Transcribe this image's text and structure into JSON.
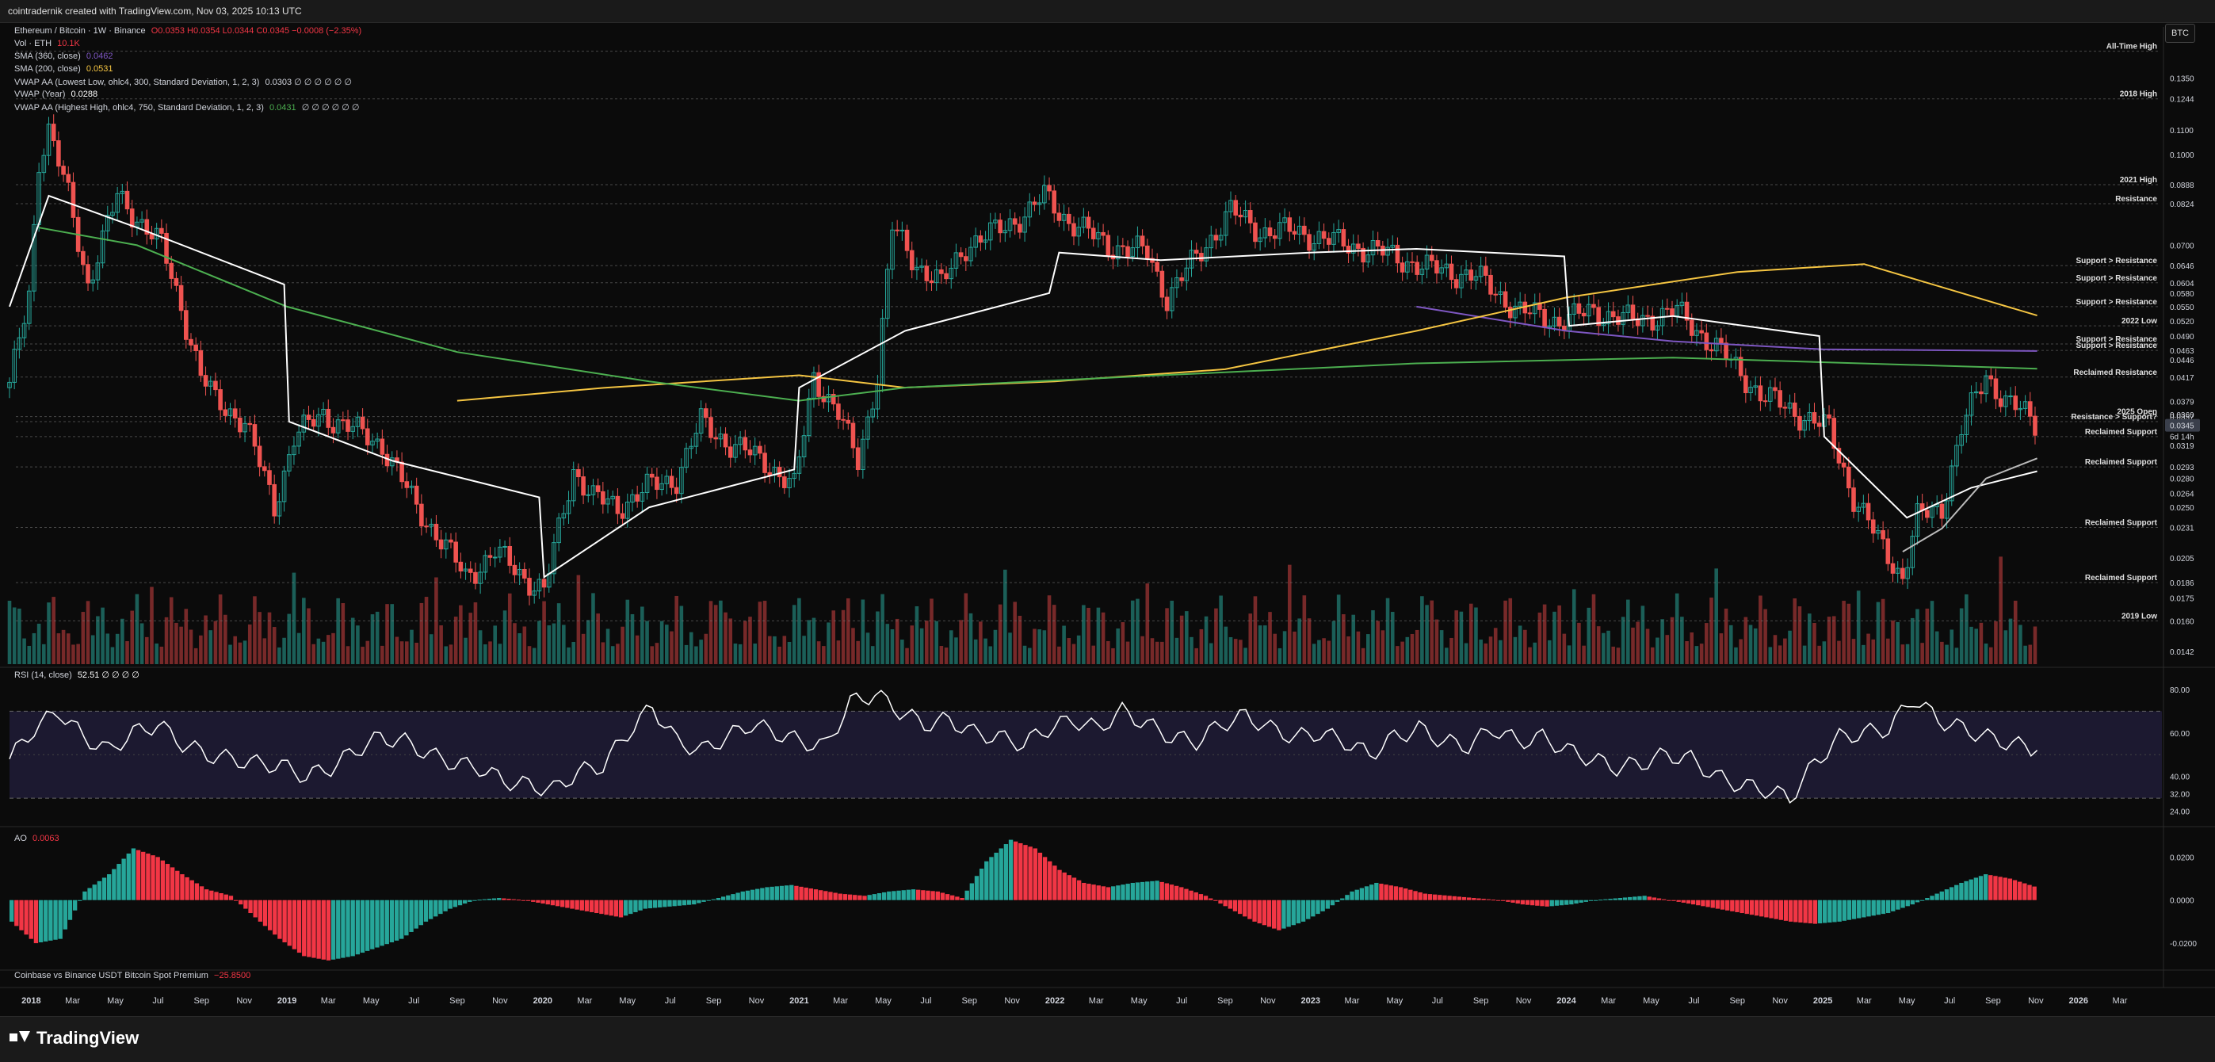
{
  "header": {
    "credit": "cointradernik created with TradingView.com, Nov 03, 2025 10:13 UTC"
  },
  "footer": {
    "brand": "TradingView"
  },
  "symbol_button": "BTC",
  "legend": {
    "title": "Ethereum / Bitcoin · 1W · Binance",
    "ohlc": "O0.0353  H0.0354  L0.0344  C0.0345  −0.0008 (−2.35%)",
    "volume": {
      "label": "Vol · ETH",
      "value": "10.1K"
    },
    "sma360": {
      "label": "SMA (360, close)",
      "value": "0.0462",
      "color": "#7e57c2"
    },
    "sma200": {
      "label": "SMA (200, close)",
      "value": "0.0531",
      "color": "#f5c542"
    },
    "vwap_low": {
      "label": "VWAP AA (Lowest Low, ohlc4, 300, Standard Deviation, 1, 2, 3)",
      "value": "0.0303  ∅ ∅ ∅ ∅ ∅ ∅"
    },
    "vwap_year": {
      "label": "VWAP (Year)",
      "value": "0.0288"
    },
    "vwap_high": {
      "label": "VWAP AA (Highest High, ohlc4, 750, Standard Deviation, 1, 2, 3)",
      "value": "0.0431",
      "suffix": "∅ ∅ ∅ ∅ ∅ ∅",
      "color": "#4caf50"
    }
  },
  "rsi_label": {
    "label": "RSI (14, close)",
    "value": "52.51  ∅ ∅ ∅ ∅"
  },
  "ao_label": {
    "label": "AO",
    "value": "0.0063"
  },
  "premium_label": {
    "label": "Coinbase vs Binance USDT Bitcoin Spot Premium",
    "value": "−25.8500"
  },
  "chart_data": [
    {
      "type": "candlestick",
      "title": "Ethereum / Bitcoin · 1W · Binance",
      "y_scale": "log",
      "ylim": [
        0.0135,
        0.165
      ],
      "x_start": "2017-12-01",
      "x_end": "2026-04-30",
      "price_ticks": [
        "0.1350",
        "0.1244",
        "0.1100",
        "0.1000",
        "0.0888",
        "0.0824",
        "0.0700",
        "0.0646",
        "0.0604",
        "0.0580",
        "0.0550",
        "0.0520",
        "0.0490",
        "0.0463",
        "0.0446",
        "0.0417",
        "0.0379",
        "0.0360",
        "0.0357",
        "0.0345",
        "0.0319",
        "0.0293",
        "0.0280",
        "0.0264",
        "0.0250",
        "0.0231",
        "0.0205",
        "0.0186",
        "0.0175",
        "0.0160",
        "0.0142"
      ],
      "x_labels": [
        "2018",
        "Mar",
        "May",
        "Jul",
        "Sep",
        "Nov",
        "2019",
        "Mar",
        "May",
        "Jul",
        "Sep",
        "Nov",
        "2020",
        "Mar",
        "May",
        "Jul",
        "Sep",
        "Nov",
        "2021",
        "Mar",
        "May",
        "Jul",
        "Sep",
        "Nov",
        "2022",
        "Mar",
        "May",
        "Jul",
        "Sep",
        "Nov",
        "2023",
        "Mar",
        "May",
        "Jul",
        "Sep",
        "Nov",
        "2024",
        "Mar",
        "May",
        "Jul",
        "Sep",
        "Nov",
        "2025",
        "Mar",
        "May",
        "Jul",
        "Sep",
        "Nov",
        "2026",
        "Mar"
      ],
      "levels": [
        {
          "label": "All-Time High",
          "price": 0.15
        },
        {
          "label": "2018 High",
          "price": 0.1244
        },
        {
          "label": "2021 High",
          "price": 0.0888
        },
        {
          "label": "Resistance",
          "price": 0.0824
        },
        {
          "label": "Support > Resistance",
          "price": 0.0646
        },
        {
          "label": "Support > Resistance",
          "price": 0.0604
        },
        {
          "label": "Support > Resistance",
          "price": 0.055
        },
        {
          "label": "2022 Low",
          "price": 0.051
        },
        {
          "label": "Support > Resistance",
          "price": 0.0475
        },
        {
          "label": "Support > Resistance",
          "price": 0.0463
        },
        {
          "label": "Reclaimed Resistance",
          "price": 0.0417
        },
        {
          "label": "2025 Open",
          "price": 0.0357
        },
        {
          "label": "Resistance > Support?",
          "price": 0.035
        },
        {
          "label": "Reclaimed Support",
          "price": 0.033
        },
        {
          "label": "Reclaimed Support",
          "price": 0.0293
        },
        {
          "label": "Reclaimed Support",
          "price": 0.0231
        },
        {
          "label": "Reclaimed Support",
          "price": 0.0186
        },
        {
          "label": "2019 Low",
          "price": 0.016
        }
      ],
      "last_price": {
        "value": "0.0345",
        "countdown": "6d 14h"
      },
      "close_path": [
        [
          "2017-12-01",
          0.04
        ],
        [
          "2017-12-29",
          0.058
        ],
        [
          "2018-01-12",
          0.098
        ],
        [
          "2018-01-26",
          0.11
        ],
        [
          "2018-02-23",
          0.085
        ],
        [
          "2018-03-23",
          0.06
        ],
        [
          "2018-05-04",
          0.085
        ],
        [
          "2018-06-01",
          0.078
        ],
        [
          "2018-07-06",
          0.07
        ],
        [
          "2018-08-03",
          0.055
        ],
        [
          "2018-08-31",
          0.042
        ],
        [
          "2018-09-21",
          0.038
        ],
        [
          "2018-11-02",
          0.035
        ],
        [
          "2018-12-14",
          0.025
        ],
        [
          "2019-01-11",
          0.033
        ],
        [
          "2019-02-22",
          0.036
        ],
        [
          "2019-04-05",
          0.034
        ],
        [
          "2019-05-17",
          0.032
        ],
        [
          "2019-07-05",
          0.025
        ],
        [
          "2019-08-09",
          0.022
        ],
        [
          "2019-09-13",
          0.019
        ],
        [
          "2019-10-25",
          0.021
        ],
        [
          "2019-12-06",
          0.019
        ],
        [
          "2020-01-03",
          0.018
        ],
        [
          "2020-02-14",
          0.029
        ],
        [
          "2020-03-13",
          0.026
        ],
        [
          "2020-04-17",
          0.025
        ],
        [
          "2020-05-29",
          0.027
        ],
        [
          "2020-07-10",
          0.028
        ],
        [
          "2020-08-14",
          0.035
        ],
        [
          "2020-09-25",
          0.032
        ],
        [
          "2020-11-13",
          0.03
        ],
        [
          "2020-12-25",
          0.027
        ],
        [
          "2021-01-22",
          0.042
        ],
        [
          "2021-02-26",
          0.036
        ],
        [
          "2021-03-26",
          0.03
        ],
        [
          "2021-04-23",
          0.042
        ],
        [
          "2021-05-14",
          0.075
        ],
        [
          "2021-06-18",
          0.065
        ],
        [
          "2021-07-23",
          0.06
        ],
        [
          "2021-08-27",
          0.07
        ],
        [
          "2021-10-01",
          0.073
        ],
        [
          "2021-11-26",
          0.08
        ],
        [
          "2021-12-17",
          0.085
        ],
        [
          "2022-01-21",
          0.077
        ],
        [
          "2022-03-18",
          0.07
        ],
        [
          "2022-05-13",
          0.068
        ],
        [
          "2022-06-10",
          0.057
        ],
        [
          "2022-07-15",
          0.065
        ],
        [
          "2022-09-09",
          0.08
        ],
        [
          "2022-10-21",
          0.074
        ],
        [
          "2022-12-09",
          0.074
        ],
        [
          "2023-02-03",
          0.071
        ],
        [
          "2023-04-14",
          0.068
        ],
        [
          "2023-06-16",
          0.064
        ],
        [
          "2023-08-25",
          0.062
        ],
        [
          "2023-10-27",
          0.054
        ],
        [
          "2023-12-22",
          0.052
        ],
        [
          "2024-02-09",
          0.054
        ],
        [
          "2024-04-05",
          0.052
        ],
        [
          "2024-06-07",
          0.054
        ],
        [
          "2024-08-09",
          0.046
        ],
        [
          "2024-10-04",
          0.039
        ],
        [
          "2024-11-29",
          0.036
        ],
        [
          "2025-01-10",
          0.034
        ],
        [
          "2025-02-14",
          0.026
        ],
        [
          "2025-03-21",
          0.022
        ],
        [
          "2025-04-25",
          0.019
        ],
        [
          "2025-05-16",
          0.024
        ],
        [
          "2025-06-20",
          0.025
        ],
        [
          "2025-07-18",
          0.034
        ],
        [
          "2025-08-22",
          0.042
        ],
        [
          "2025-09-19",
          0.038
        ],
        [
          "2025-10-17",
          0.036
        ],
        [
          "2025-11-03",
          0.0345
        ]
      ],
      "series": [
        {
          "name": "SMA (360, close)",
          "color": "#7e57c2",
          "value": "0.0462",
          "points": [
            [
              "2023-06-01",
              0.055
            ],
            [
              "2024-01-01",
              0.05
            ],
            [
              "2024-06-01",
              0.048
            ],
            [
              "2025-01-01",
              0.0465
            ],
            [
              "2025-11-03",
              0.0462
            ]
          ]
        },
        {
          "name": "SMA (200, close)",
          "color": "#f5c542",
          "value": "0.0531",
          "points": [
            [
              "2019-09-01",
              0.038
            ],
            [
              "2020-04-01",
              0.04
            ],
            [
              "2021-01-01",
              0.042
            ],
            [
              "2021-06-01",
              0.04
            ],
            [
              "2022-01-01",
              0.041
            ],
            [
              "2022-09-01",
              0.043
            ],
            [
              "2023-06-01",
              0.05
            ],
            [
              "2024-01-01",
              0.057
            ],
            [
              "2024-09-01",
              0.063
            ],
            [
              "2025-03-01",
              0.065
            ],
            [
              "2025-11-03",
              0.0531
            ]
          ]
        },
        {
          "name": "VWAP AA (Highest High)",
          "color": "#4caf50",
          "value": "0.0431",
          "points": [
            [
              "2018-01-12",
              0.075
            ],
            [
              "2018-06-01",
              0.07
            ],
            [
              "2019-01-01",
              0.055
            ],
            [
              "2019-09-01",
              0.046
            ],
            [
              "2020-06-01",
              0.041
            ],
            [
              "2021-01-01",
              0.038
            ],
            [
              "2021-06-01",
              0.04
            ],
            [
              "2022-06-01",
              0.042
            ],
            [
              "2023-06-01",
              0.044
            ],
            [
              "2024-06-01",
              0.045
            ],
            [
              "2025-11-03",
              0.0431
            ]
          ]
        },
        {
          "name": "VWAP (Year)",
          "color": "#ffffff",
          "value": "0.0288",
          "points": [
            [
              "2017-12-01",
              0.055
            ],
            [
              "2018-01-26",
              0.085
            ],
            [
              "2018-06-01",
              0.075
            ],
            [
              "2018-12-28",
              0.06
            ],
            [
              "2019-01-04",
              0.035
            ],
            [
              "2019-06-01",
              0.03
            ],
            [
              "2019-12-27",
              0.026
            ],
            [
              "2020-01-03",
              0.019
            ],
            [
              "2020-06-01",
              0.025
            ],
            [
              "2020-12-25",
              0.029
            ],
            [
              "2021-01-01",
              0.04
            ],
            [
              "2021-06-01",
              0.05
            ],
            [
              "2021-12-24",
              0.058
            ],
            [
              "2022-01-07",
              0.068
            ],
            [
              "2022-06-01",
              0.066
            ],
            [
              "2022-12-30",
              0.068
            ],
            [
              "2023-06-01",
              0.069
            ],
            [
              "2023-12-29",
              0.067
            ],
            [
              "2024-01-05",
              0.051
            ],
            [
              "2024-06-01",
              0.053
            ],
            [
              "2024-12-27",
              0.049
            ],
            [
              "2025-01-03",
              0.033
            ],
            [
              "2025-05-01",
              0.024
            ],
            [
              "2025-08-01",
              0.027
            ],
            [
              "2025-11-03",
              0.0288
            ]
          ]
        },
        {
          "name": "VWAP AA (Lowest Low)",
          "color": "#bbbbbb",
          "value": "0.0303",
          "points": [
            [
              "2025-04-25",
              0.021
            ],
            [
              "2025-06-20",
              0.023
            ],
            [
              "2025-08-22",
              0.028
            ],
            [
              "2025-11-03",
              0.0303
            ]
          ]
        }
      ]
    },
    {
      "type": "line",
      "title": "RSI (14, close)",
      "ylim": [
        18,
        88
      ],
      "y_ticks": [
        "80.00",
        "60.00",
        "40.00",
        "32.00",
        "24.00"
      ],
      "bands": [
        70,
        30
      ],
      "values": [
        48,
        62,
        70,
        58,
        52,
        60,
        64,
        55,
        50,
        48,
        46,
        45,
        40,
        44,
        52,
        58,
        56,
        50,
        46,
        44,
        38,
        36,
        34,
        42,
        45,
        60,
        72,
        56,
        52,
        58,
        64,
        60,
        56,
        54,
        74,
        78,
        70,
        64,
        66,
        60,
        58,
        55,
        62,
        66,
        62,
        70,
        64,
        58,
        56,
        64,
        68,
        62,
        58,
        60,
        56,
        50,
        58,
        62,
        56,
        54,
        62,
        56,
        58,
        52,
        48,
        44,
        46,
        50,
        48,
        40,
        36,
        34,
        30,
        46,
        58,
        60,
        62,
        76,
        66,
        62,
        58,
        55,
        52
      ],
      "x_start": "2017-12-01",
      "x_end": "2025-11-03"
    },
    {
      "type": "bar",
      "title": "AO",
      "ylim": [
        -0.031,
        0.033
      ],
      "y_ticks": [
        "0.0200",
        "0.0000",
        "-0.0200"
      ],
      "values": [
        -0.01,
        -0.02,
        -0.018,
        0.004,
        0.012,
        0.024,
        0.02,
        0.012,
        0.005,
        0.002,
        -0.008,
        -0.018,
        -0.026,
        -0.028,
        -0.026,
        -0.022,
        -0.018,
        -0.01,
        -0.004,
        0.0,
        0.001,
        0.0,
        -0.002,
        -0.004,
        -0.006,
        -0.008,
        -0.004,
        -0.003,
        -0.002,
        0.001,
        0.004,
        0.006,
        0.007,
        0.005,
        0.003,
        0.002,
        0.004,
        0.005,
        0.004,
        0.001,
        0.018,
        0.028,
        0.024,
        0.014,
        0.008,
        0.006,
        0.008,
        0.009,
        0.006,
        0.002,
        -0.004,
        -0.01,
        -0.014,
        -0.01,
        -0.004,
        0.004,
        0.008,
        0.006,
        0.003,
        0.002,
        0.001,
        0.0,
        -0.002,
        -0.003,
        -0.002,
        0.0,
        0.001,
        0.002,
        0.0,
        -0.002,
        -0.004,
        -0.006,
        -0.008,
        -0.01,
        -0.011,
        -0.01,
        -0.008,
        -0.006,
        -0.002,
        0.003,
        0.008,
        0.012,
        0.01,
        0.0063
      ],
      "x_start": "2017-12-01",
      "x_end": "2025-11-03"
    }
  ]
}
